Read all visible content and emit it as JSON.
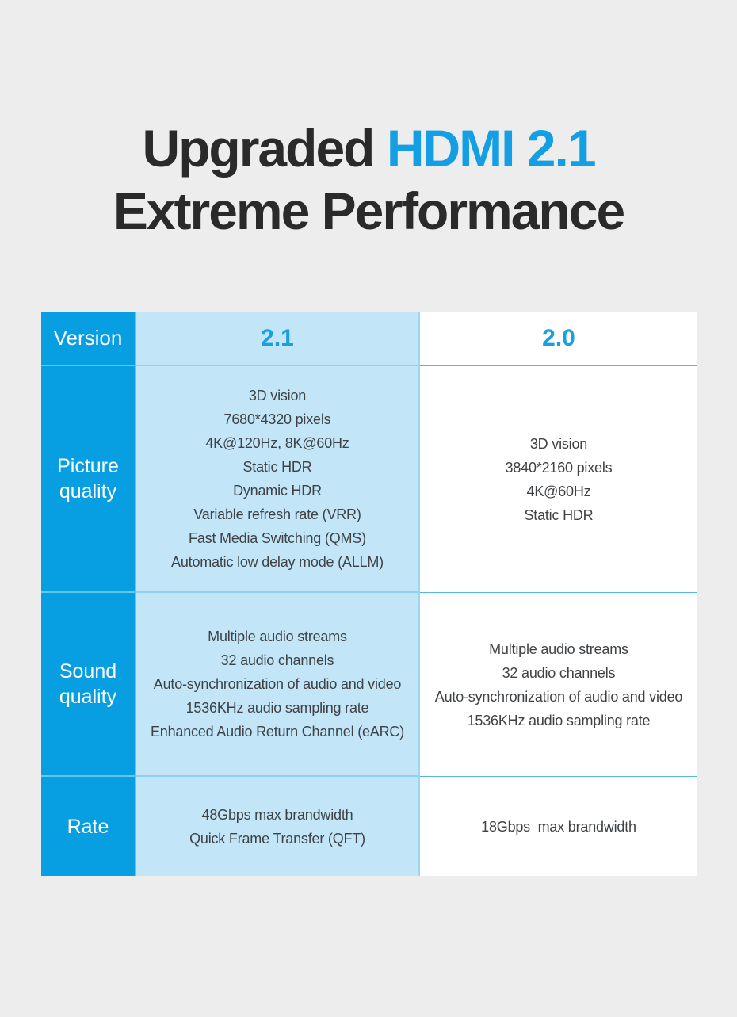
{
  "title": {
    "line1_dark": "Upgraded ",
    "line1_accent": "HDMI 2.1",
    "line2": "Extreme Performance"
  },
  "colors": {
    "background": "#ededed",
    "accent_blue": "#089fe2",
    "light_blue": "#c2e5f8",
    "header_text_blue": "#1a9fe1",
    "title_accent_blue": "#149fe4",
    "title_dark": "#2a2a2a",
    "body_text": "#3f4245"
  },
  "chart_data": {
    "type": "table",
    "title": "Upgraded HDMI 2.1 Extreme Performance",
    "columns": [
      "Version",
      "2.1",
      "2.0"
    ],
    "rows": [
      {
        "label": "Picture quality",
        "hdmi_2_1": [
          "3D vision",
          "7680*4320 pixels",
          "4K@120Hz, 8K@60Hz",
          "Static HDR",
          "Dynamic HDR",
          "Variable refresh rate (VRR)",
          "Fast Media Switching (QMS)",
          "Automatic low delay mode (ALLM)"
        ],
        "hdmi_2_0": [
          "3D vision",
          "3840*2160 pixels",
          "4K@60Hz",
          "Static HDR"
        ]
      },
      {
        "label": "Sound quality",
        "hdmi_2_1": [
          "Multiple audio streams",
          "32 audio channels",
          "Auto-synchronization of audio and video",
          "1536KHz audio sampling rate",
          "Enhanced Audio Return Channel (eARC)"
        ],
        "hdmi_2_0": [
          "Multiple audio streams",
          "32 audio channels",
          "Auto-synchronization of audio and video",
          "1536KHz audio sampling rate"
        ]
      },
      {
        "label": "Rate",
        "hdmi_2_1": [
          "48Gbps max brandwidth",
          "Quick Frame Transfer (QFT)"
        ],
        "hdmi_2_0": [
          "18Gbps  max brandwidth"
        ]
      }
    ]
  }
}
